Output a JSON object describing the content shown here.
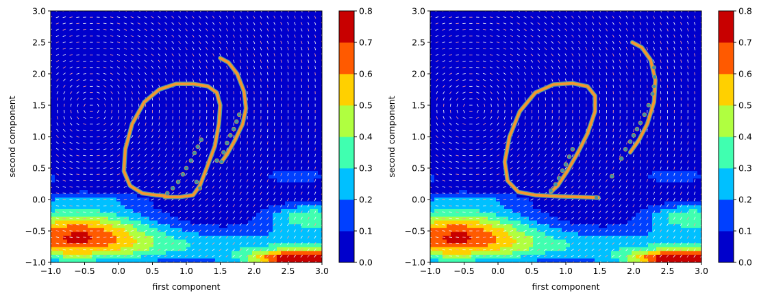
{
  "chart_data": [
    {
      "type": "contour",
      "title": "",
      "xlabel": "first component",
      "ylabel": "second component",
      "xlim": [
        -1.0,
        3.0
      ],
      "ylim": [
        -1.0,
        3.0
      ],
      "xticks": [
        "−1.0",
        "−0.5",
        "0.0",
        "0.5",
        "1.0",
        "1.5",
        "2.0",
        "2.5",
        "3.0"
      ],
      "yticks": [
        "−1.0",
        "−0.5",
        "0.0",
        "0.5",
        "1.0",
        "1.5",
        "2.0",
        "2.5",
        "3.0"
      ],
      "colorbar": {
        "levels": [
          0.0,
          0.1,
          0.2,
          0.3,
          0.4,
          0.5,
          0.6,
          0.7,
          0.8
        ],
        "ticks": [
          "0.0",
          "0.1",
          "0.2",
          "0.3",
          "0.4",
          "0.5",
          "0.6",
          "0.7",
          "0.8"
        ],
        "colors": [
          "#0000cc",
          "#0040ff",
          "#00c0ff",
          "#40ffb0",
          "#b0ff40",
          "#ffd000",
          "#ff5a00",
          "#c80000"
        ]
      },
      "curve": [
        [
          0.68,
          0.06
        ],
        [
          0.55,
          0.07
        ],
        [
          0.35,
          0.1
        ],
        [
          0.17,
          0.22
        ],
        [
          0.08,
          0.45
        ],
        [
          0.1,
          0.8
        ],
        [
          0.2,
          1.2
        ],
        [
          0.38,
          1.55
        ],
        [
          0.6,
          1.75
        ],
        [
          0.85,
          1.84
        ],
        [
          1.1,
          1.84
        ],
        [
          1.32,
          1.8
        ],
        [
          1.45,
          1.7
        ],
        [
          1.5,
          1.5
        ],
        [
          1.48,
          1.2
        ],
        [
          1.42,
          0.85
        ],
        [
          1.3,
          0.5
        ],
        [
          1.2,
          0.22
        ],
        [
          1.1,
          0.07
        ],
        [
          0.9,
          0.04
        ],
        [
          0.68,
          0.04
        ]
      ],
      "curve2": [
        [
          1.5,
          2.25
        ],
        [
          1.62,
          2.18
        ],
        [
          1.75,
          2.0
        ],
        [
          1.85,
          1.72
        ],
        [
          1.88,
          1.45
        ],
        [
          1.83,
          1.2
        ],
        [
          1.72,
          0.95
        ],
        [
          1.6,
          0.72
        ],
        [
          1.52,
          0.6
        ]
      ],
      "points": [
        [
          0.72,
          0.1
        ],
        [
          0.8,
          0.18
        ],
        [
          0.88,
          0.28
        ],
        [
          0.95,
          0.4
        ],
        [
          1.0,
          0.5
        ],
        [
          1.07,
          0.62
        ],
        [
          1.12,
          0.74
        ],
        [
          1.17,
          0.84
        ],
        [
          1.22,
          0.95
        ],
        [
          1.15,
          0.28
        ],
        [
          1.2,
          0.18
        ],
        [
          1.45,
          0.62
        ],
        [
          1.52,
          0.6
        ],
        [
          1.55,
          0.75
        ],
        [
          1.6,
          0.9
        ],
        [
          1.65,
          1.02
        ],
        [
          1.7,
          1.12
        ],
        [
          1.74,
          1.24
        ],
        [
          1.78,
          1.35
        ]
      ]
    },
    {
      "type": "contour",
      "title": "",
      "xlabel": "first component",
      "ylabel": "second component",
      "xlim": [
        -1.0,
        3.0
      ],
      "ylim": [
        -1.0,
        3.0
      ],
      "xticks": [
        "−1.0",
        "−0.5",
        "0.0",
        "0.5",
        "1.0",
        "1.5",
        "2.0",
        "2.5",
        "3.0"
      ],
      "yticks": [
        "−1.0",
        "−0.5",
        "0.0",
        "0.5",
        "1.0",
        "1.5",
        "2.0",
        "2.5",
        "3.0"
      ],
      "colorbar": {
        "levels": [
          0.0,
          0.1,
          0.2,
          0.3,
          0.4,
          0.5,
          0.6,
          0.7,
          0.8
        ],
        "ticks": [
          "0.0",
          "0.1",
          "0.2",
          "0.3",
          "0.4",
          "0.5",
          "0.6",
          "0.7",
          "0.8"
        ],
        "colors": [
          "#0000cc",
          "#0040ff",
          "#00c0ff",
          "#40ffb0",
          "#b0ff40",
          "#ffd000",
          "#ff5a00",
          "#c80000"
        ]
      },
      "curve": [
        [
          1.48,
          0.03
        ],
        [
          1.2,
          0.04
        ],
        [
          0.9,
          0.05
        ],
        [
          0.55,
          0.07
        ],
        [
          0.3,
          0.12
        ],
        [
          0.14,
          0.3
        ],
        [
          0.1,
          0.6
        ],
        [
          0.17,
          1.0
        ],
        [
          0.32,
          1.4
        ],
        [
          0.55,
          1.7
        ],
        [
          0.82,
          1.83
        ],
        [
          1.1,
          1.85
        ],
        [
          1.32,
          1.8
        ],
        [
          1.43,
          1.65
        ],
        [
          1.43,
          1.4
        ],
        [
          1.32,
          1.05
        ],
        [
          1.18,
          0.75
        ],
        [
          1.02,
          0.45
        ],
        [
          0.88,
          0.22
        ],
        [
          0.78,
          0.12
        ]
      ],
      "curve2": [
        [
          1.98,
          2.5
        ],
        [
          2.12,
          2.42
        ],
        [
          2.25,
          2.22
        ],
        [
          2.32,
          1.9
        ],
        [
          2.3,
          1.55
        ],
        [
          2.2,
          1.2
        ],
        [
          2.08,
          0.95
        ],
        [
          1.95,
          0.75
        ]
      ],
      "points": [
        [
          0.78,
          0.14
        ],
        [
          0.85,
          0.24
        ],
        [
          0.9,
          0.34
        ],
        [
          0.95,
          0.46
        ],
        [
          1.0,
          0.56
        ],
        [
          1.05,
          0.68
        ],
        [
          1.1,
          0.8
        ],
        [
          1.68,
          0.37
        ],
        [
          1.82,
          0.65
        ],
        [
          1.88,
          0.8
        ],
        [
          1.95,
          0.92
        ],
        [
          2.0,
          1.02
        ],
        [
          2.05,
          1.12
        ],
        [
          2.1,
          1.22
        ],
        [
          2.16,
          1.35
        ],
        [
          2.22,
          1.5
        ],
        [
          2.28,
          1.68
        ],
        [
          2.3,
          1.8
        ],
        [
          2.31,
          1.95
        ],
        [
          2.3,
          2.1
        ],
        [
          1.45,
          0.03
        ]
      ]
    }
  ]
}
